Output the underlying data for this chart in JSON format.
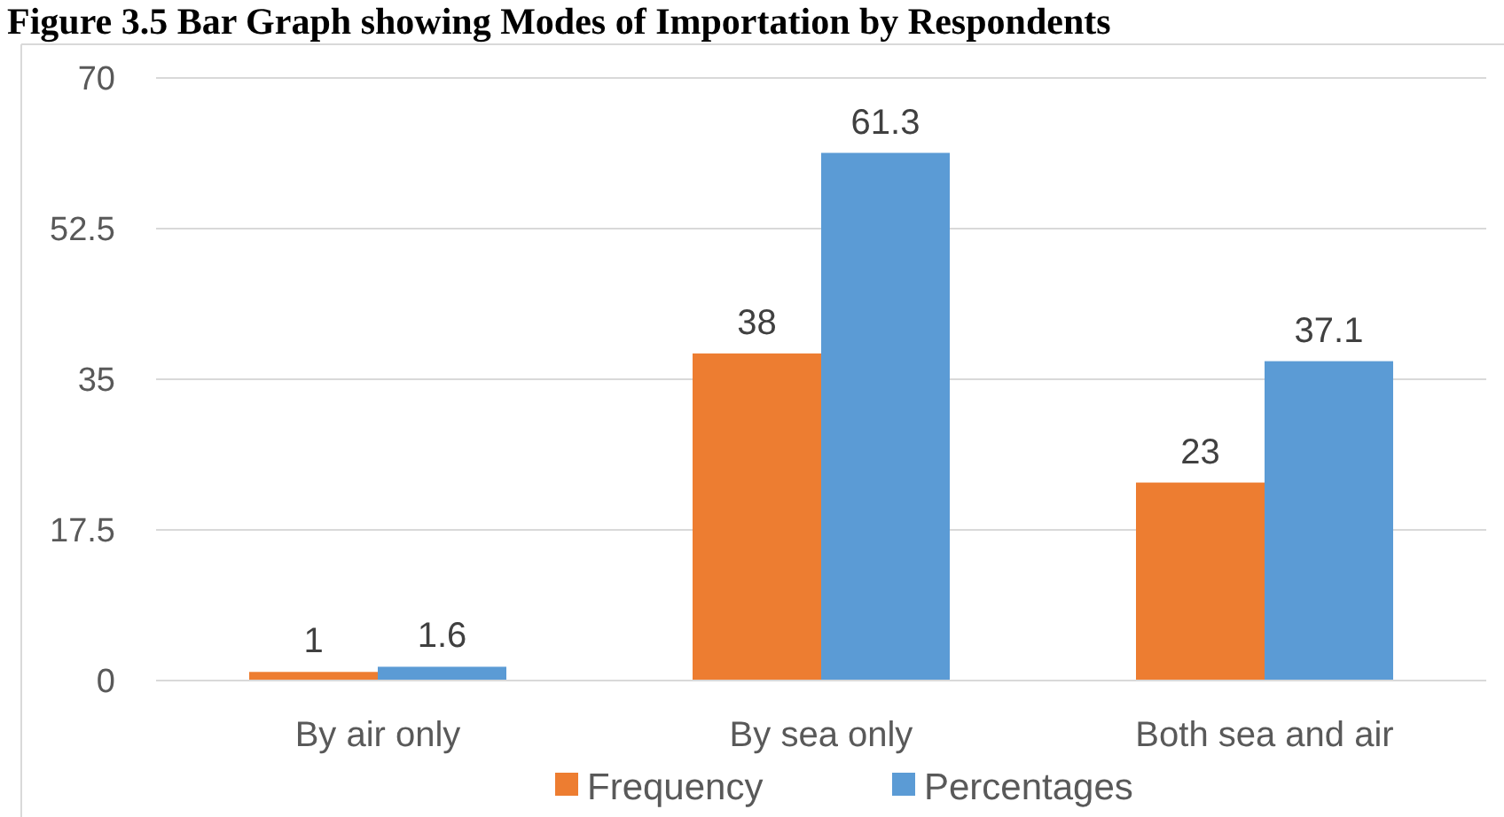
{
  "chart_data": {
    "type": "bar",
    "title": "Figure 3.5 Bar Graph showing Modes of Importation by Respondents",
    "categories": [
      "By air only",
      "By sea only",
      "Both sea and air"
    ],
    "series": [
      {
        "name": "Frequency",
        "color": "#ed7d31",
        "values": [
          1,
          38,
          23
        ]
      },
      {
        "name": "Percentages",
        "color": "#5b9bd5",
        "values": [
          1.6,
          61.3,
          37.1
        ]
      }
    ],
    "ylim": [
      0,
      70
    ],
    "yticks": [
      0,
      17.5,
      35,
      52.5,
      70
    ],
    "grid": "y",
    "legend": "bottom",
    "data_labels": true
  }
}
